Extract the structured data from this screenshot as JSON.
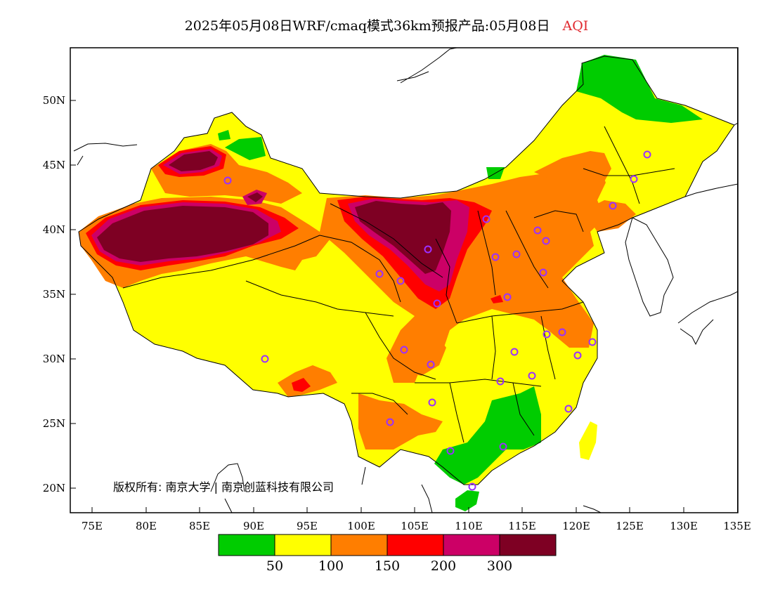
{
  "title": {
    "main": "2025年05月08日WRF/cmaq模式36km预报产品:05月08日",
    "product": "AQI",
    "product_color": "#e0282e"
  },
  "map": {
    "x_ticks": [
      "75E",
      "80E",
      "85E",
      "90E",
      "95E",
      "100E",
      "105E",
      "110E",
      "115E",
      "120E",
      "125E",
      "130E",
      "135E"
    ],
    "y_ticks": [
      "50N",
      "45N",
      "40N",
      "35N",
      "30N",
      "25N",
      "20N"
    ]
  },
  "copyright": "版权所有: 南京大学 | 南京创蓝科技有限公司",
  "legend": {
    "colors": [
      "#00cc00",
      "#ffff00",
      "#ff7e00",
      "#ff0000",
      "#cc0066",
      "#7e0023"
    ],
    "labels": [
      "50",
      "100",
      "150",
      "200",
      "300"
    ]
  },
  "aqi_levels": {
    "good": "#00cc00",
    "moderate": "#ffff00",
    "unhealthy_sensitive": "#ff7e00",
    "unhealthy": "#ff0000",
    "very_unhealthy": "#cc0066",
    "hazardous": "#7e0023"
  }
}
